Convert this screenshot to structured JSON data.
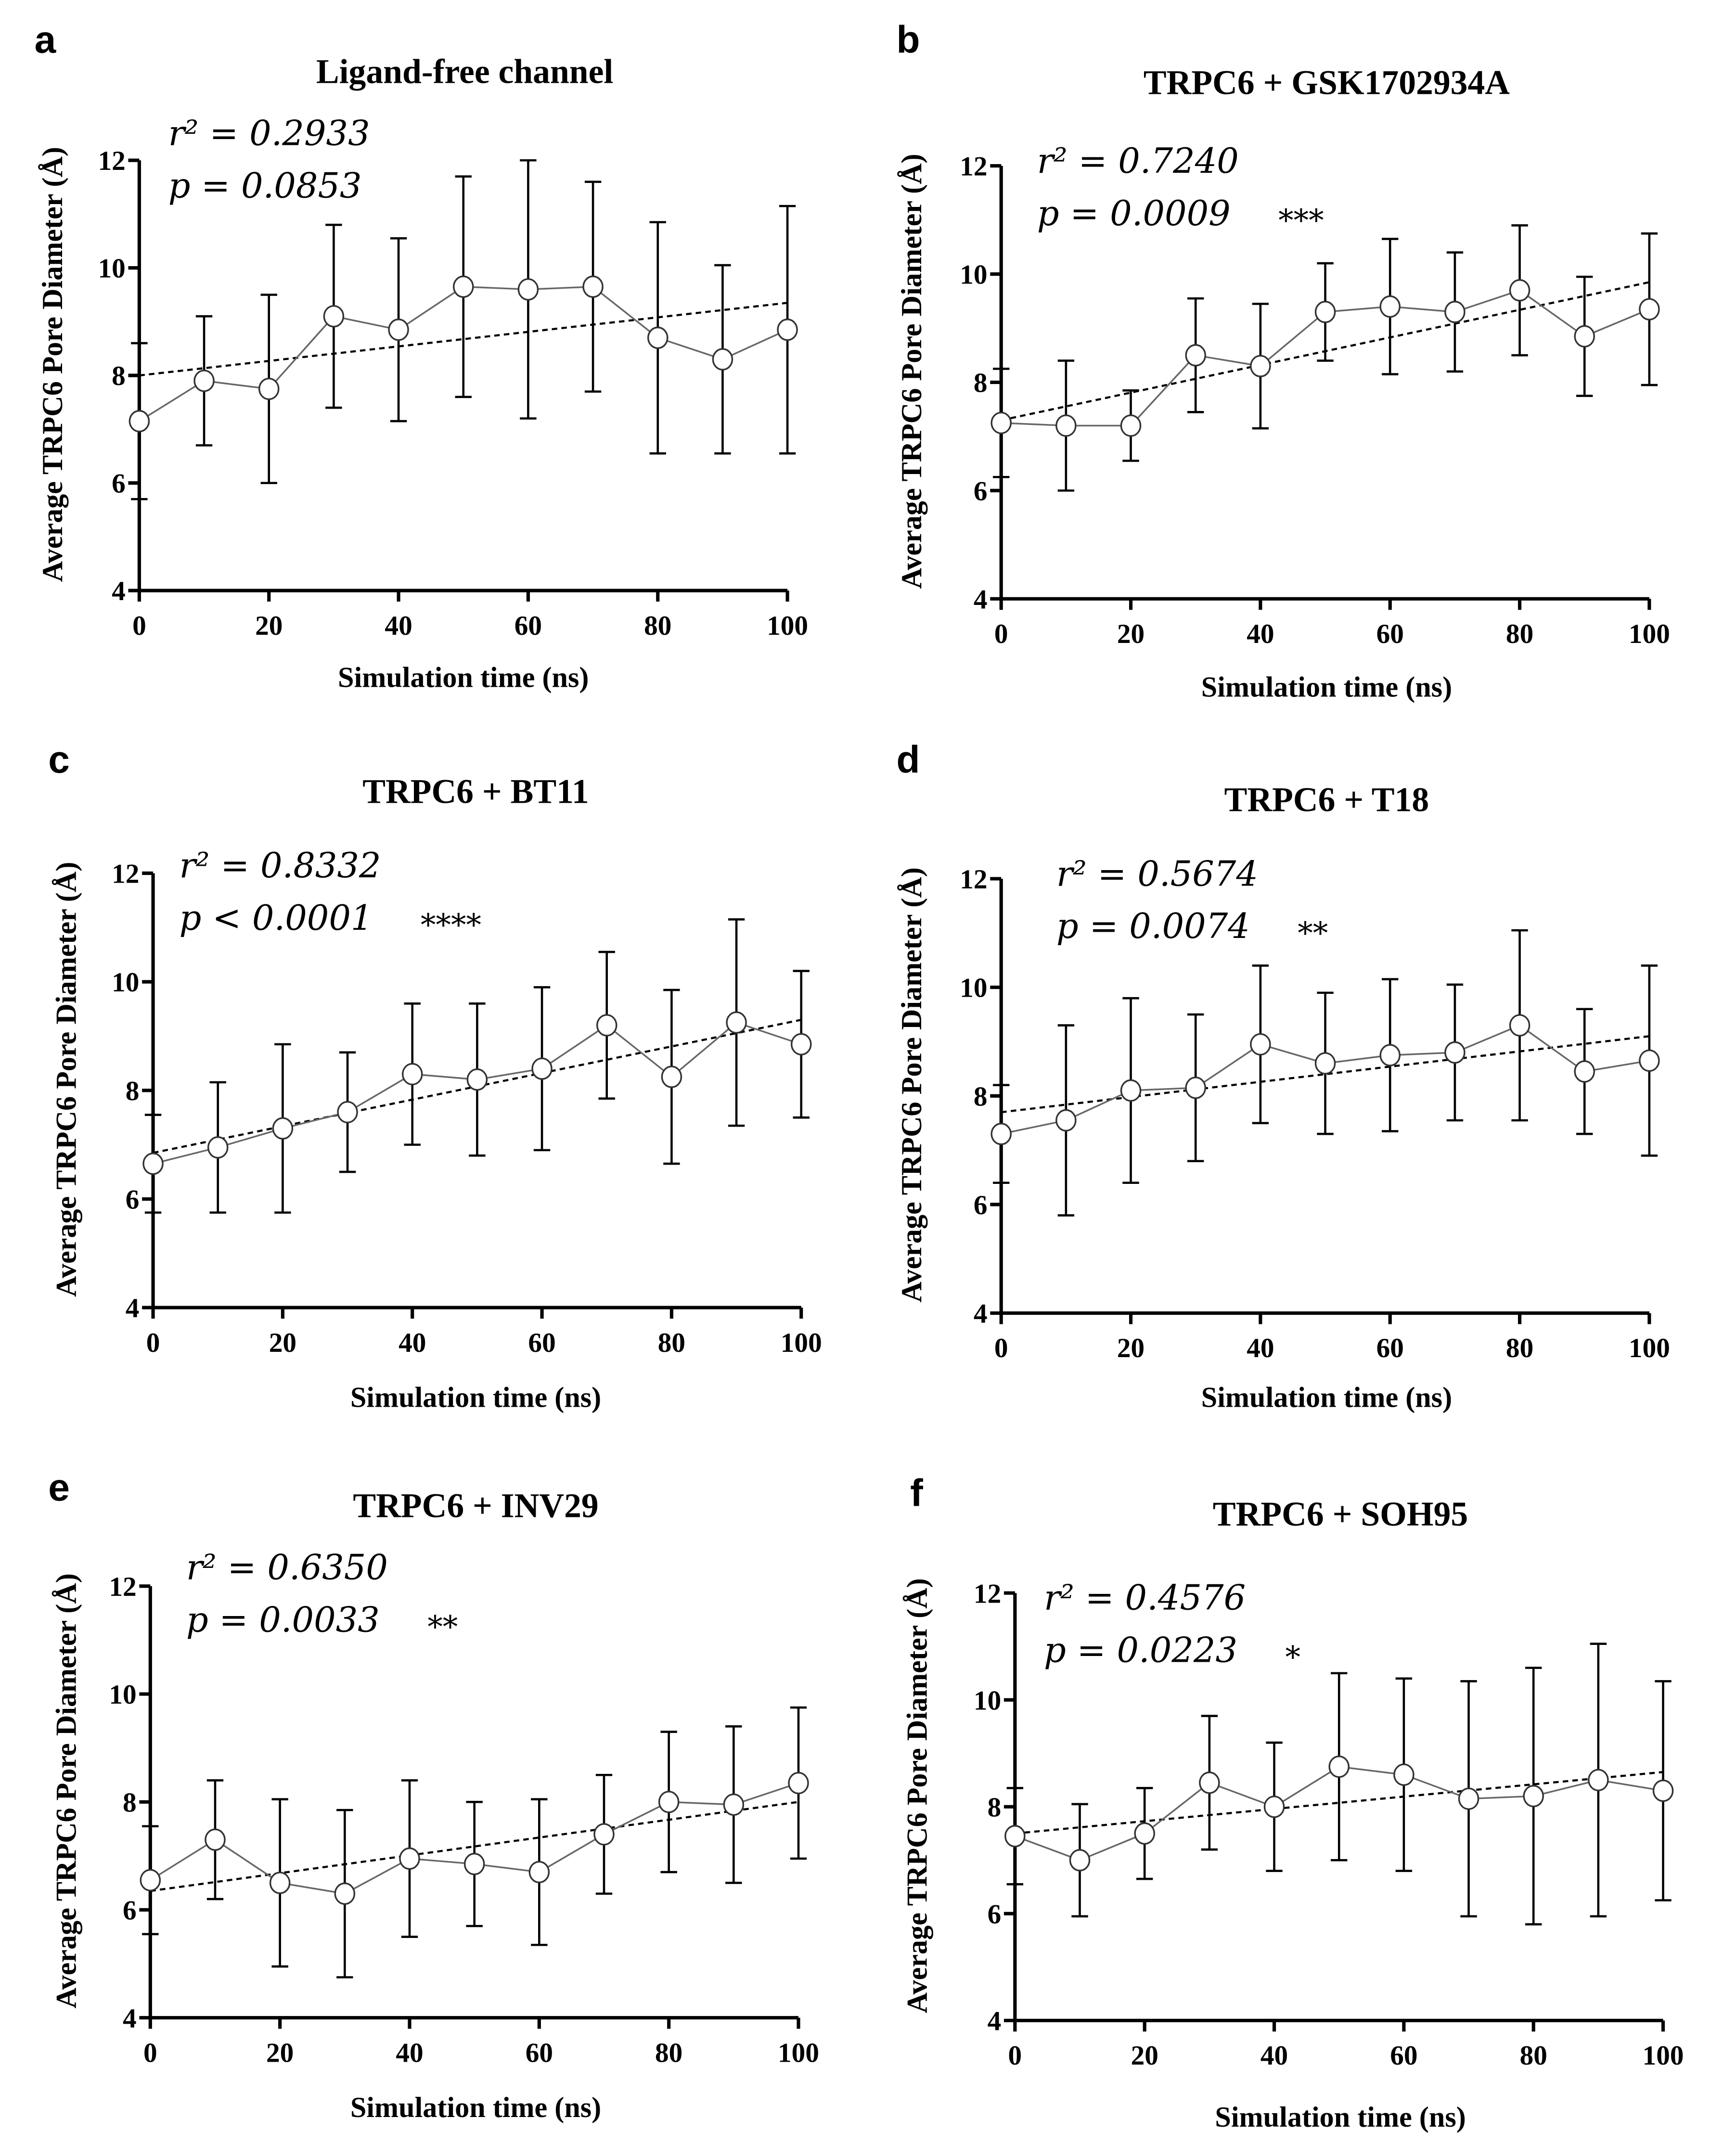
{
  "chart_data": [
    {
      "panel": "a",
      "type": "line",
      "title": "Ligand-free channel",
      "xlabel": "Simulation time (ns)",
      "ylabel": "Average TRPC6 Pore Diameter (Å)",
      "x": [
        0,
        10,
        20,
        30,
        40,
        50,
        60,
        70,
        80,
        90,
        100
      ],
      "mean": [
        7.15,
        7.9,
        7.75,
        9.1,
        8.85,
        9.65,
        9.6,
        9.65,
        8.7,
        8.3,
        8.85
      ],
      "sd": [
        1.45,
        1.2,
        1.75,
        1.7,
        1.7,
        2.05,
        2.4,
        1.95,
        2.15,
        1.75,
        2.3
      ],
      "trend": [
        8.0,
        9.35
      ],
      "r2_label": "r² = 0.2933",
      "p_label": "p  = 0.0853",
      "sig": "",
      "xlim": [
        0,
        100
      ],
      "ylim": [
        4,
        12
      ],
      "xticks": [
        "0",
        "20",
        "40",
        "60",
        "80",
        "100"
      ],
      "yticks": [
        "4",
        "6",
        "8",
        "10",
        "12"
      ]
    },
    {
      "panel": "b",
      "type": "line",
      "title": "TRPC6 + GSK1702934A",
      "xlabel": "Simulation time (ns)",
      "ylabel": "Average TRPC6 Pore Diameter (Å)",
      "x": [
        0,
        10,
        20,
        30,
        40,
        50,
        60,
        70,
        80,
        90,
        100
      ],
      "mean": [
        7.25,
        7.2,
        7.2,
        8.5,
        8.3,
        9.3,
        9.4,
        9.3,
        9.7,
        8.85,
        9.35
      ],
      "sd": [
        1.0,
        1.2,
        0.65,
        1.05,
        1.15,
        0.9,
        1.25,
        1.1,
        1.2,
        1.1,
        1.4
      ],
      "trend": [
        7.3,
        9.85
      ],
      "r2_label": "r² = 0.7240",
      "p_label": "p  = 0.0009",
      "sig": "***",
      "xlim": [
        0,
        100
      ],
      "ylim": [
        4,
        12
      ],
      "xticks": [
        "0",
        "20",
        "40",
        "60",
        "80",
        "100"
      ],
      "yticks": [
        "4",
        "6",
        "8",
        "10",
        "12"
      ]
    },
    {
      "panel": "c",
      "type": "line",
      "title": "TRPC6 + BT11",
      "xlabel": "Simulation time (ns)",
      "ylabel": "Average TRPC6 Pore Diameter (Å)",
      "x": [
        0,
        10,
        20,
        30,
        40,
        50,
        60,
        70,
        80,
        90,
        100
      ],
      "mean": [
        6.65,
        6.95,
        7.3,
        7.6,
        8.3,
        8.2,
        8.4,
        9.2,
        8.25,
        9.25,
        8.85
      ],
      "sd": [
        0.9,
        1.2,
        1.55,
        1.1,
        1.3,
        1.4,
        1.5,
        1.35,
        1.6,
        1.9,
        1.35
      ],
      "trend": [
        6.85,
        9.3
      ],
      "r2_label": "r² = 0.8332",
      "p_label": "p  < 0.0001",
      "sig": "****",
      "xlim": [
        0,
        100
      ],
      "ylim": [
        4,
        12
      ],
      "xticks": [
        "0",
        "20",
        "40",
        "60",
        "80",
        "100"
      ],
      "yticks": [
        "4",
        "6",
        "8",
        "10",
        "12"
      ]
    },
    {
      "panel": "d",
      "type": "line",
      "title": "TRPC6 + T18",
      "xlabel": "Simulation time (ns)",
      "ylabel": "Average TRPC6 Pore Diameter (Å)",
      "x": [
        0,
        10,
        20,
        30,
        40,
        50,
        60,
        70,
        80,
        90,
        100
      ],
      "mean": [
        7.3,
        7.55,
        8.1,
        8.15,
        8.95,
        8.6,
        8.75,
        8.8,
        9.3,
        8.45,
        8.65
      ],
      "sd": [
        0.9,
        1.75,
        1.7,
        1.35,
        1.45,
        1.3,
        1.4,
        1.25,
        1.75,
        1.15,
        1.75
      ],
      "trend": [
        7.7,
        9.1
      ],
      "r2_label": "r² = 0.5674",
      "p_label": "p  = 0.0074",
      "sig": "**",
      "xlim": [
        0,
        100
      ],
      "ylim": [
        4,
        12
      ],
      "xticks": [
        "0",
        "20",
        "40",
        "60",
        "80",
        "100"
      ],
      "yticks": [
        "4",
        "6",
        "8",
        "10",
        "12"
      ]
    },
    {
      "panel": "e",
      "type": "line",
      "title": "TRPC6 + INV29",
      "xlabel": "Simulation time (ns)",
      "ylabel": "Average TRPC6 Pore Diameter (Å)",
      "x": [
        0,
        10,
        20,
        30,
        40,
        50,
        60,
        70,
        80,
        90,
        100
      ],
      "mean": [
        6.55,
        7.3,
        6.5,
        6.3,
        6.95,
        6.85,
        6.7,
        7.4,
        8.0,
        7.95,
        8.35
      ],
      "sd": [
        1.0,
        1.1,
        1.55,
        1.55,
        1.45,
        1.15,
        1.35,
        1.1,
        1.3,
        1.45,
        1.4
      ],
      "trend": [
        6.35,
        8.0
      ],
      "r2_label": "r² = 0.6350",
      "p_label": "p  = 0.0033",
      "sig": "**",
      "xlim": [
        0,
        100
      ],
      "ylim": [
        4,
        12
      ],
      "xticks": [
        "0",
        "20",
        "40",
        "60",
        "80",
        "100"
      ],
      "yticks": [
        "4",
        "6",
        "8",
        "10",
        "12"
      ]
    },
    {
      "panel": "f",
      "type": "line",
      "title": "TRPC6 + SOH95",
      "xlabel": "Simulation time (ns)",
      "ylabel": "Average TRPC6 Pore Diameter (Å)",
      "x": [
        0,
        10,
        20,
        30,
        40,
        50,
        60,
        70,
        80,
        90,
        100
      ],
      "mean": [
        7.45,
        7.0,
        7.5,
        8.45,
        8.0,
        8.75,
        8.6,
        8.15,
        8.2,
        8.5,
        8.3
      ],
      "sd": [
        0.9,
        1.05,
        0.85,
        1.25,
        1.2,
        1.75,
        1.8,
        2.2,
        2.4,
        2.55,
        2.05
      ],
      "trend": [
        7.5,
        8.65
      ],
      "r2_label": "r² = 0.4576",
      "p_label": "p  = 0.0223",
      "sig": "*",
      "xlim": [
        0,
        100
      ],
      "ylim": [
        4,
        12
      ],
      "xticks": [
        "0",
        "20",
        "40",
        "60",
        "80",
        "100"
      ],
      "yticks": [
        "4",
        "6",
        "8",
        "10",
        "12"
      ]
    }
  ]
}
